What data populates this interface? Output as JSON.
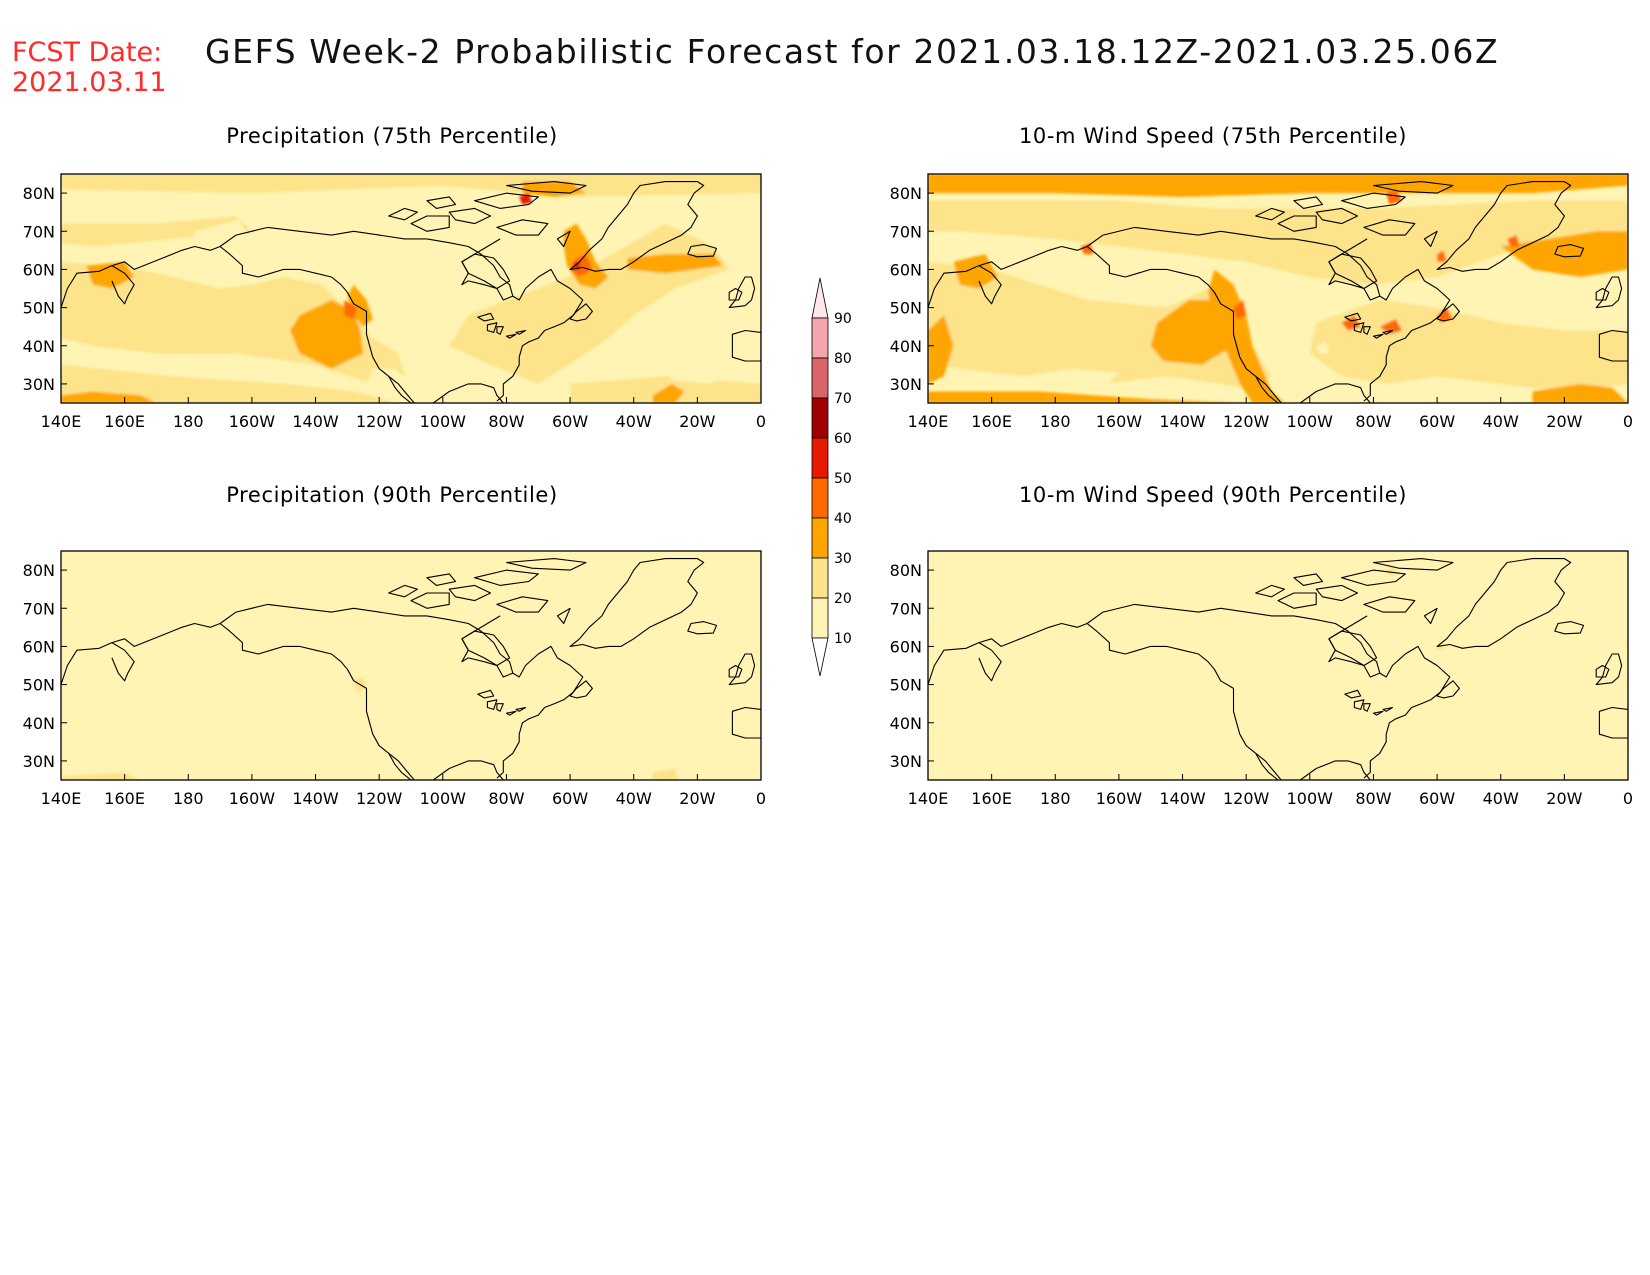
{
  "header": {
    "fcst_date_label": "FCST Date:",
    "fcst_date_value": "2021.03.11",
    "title": "GEFS Week-2 Probabilistic Forecast for 2021.03.18.12Z-2021.03.25.06Z"
  },
  "panels": [
    {
      "title": "Precipitation (75th Percentile)",
      "field": "precip75"
    },
    {
      "title": "10-m Wind Speed (75th Percentile)",
      "field": "wind75"
    },
    {
      "title": "Precipitation (90th Percentile)",
      "field": "precip90"
    },
    {
      "title": "10-m Wind Speed (90th Percentile)",
      "field": "wind90"
    }
  ],
  "axes": {
    "lat_labels": [
      "80N",
      "70N",
      "60N",
      "50N",
      "40N",
      "30N"
    ],
    "lon_labels": [
      "140E",
      "160E",
      "180",
      "160W",
      "140W",
      "120W",
      "100W",
      "80W",
      "60W",
      "40W",
      "20W",
      "0"
    ]
  },
  "colorbar": {
    "levels": [
      "10",
      "20",
      "30",
      "40",
      "50",
      "60",
      "70",
      "80",
      "90"
    ],
    "colors": [
      "#fff4b3",
      "#fde38a",
      "#ffa500",
      "#ff6a00",
      "#e61a00",
      "#a00000",
      "#d9646a",
      "#f3a6ae",
      "#ffe6ea"
    ]
  }
}
